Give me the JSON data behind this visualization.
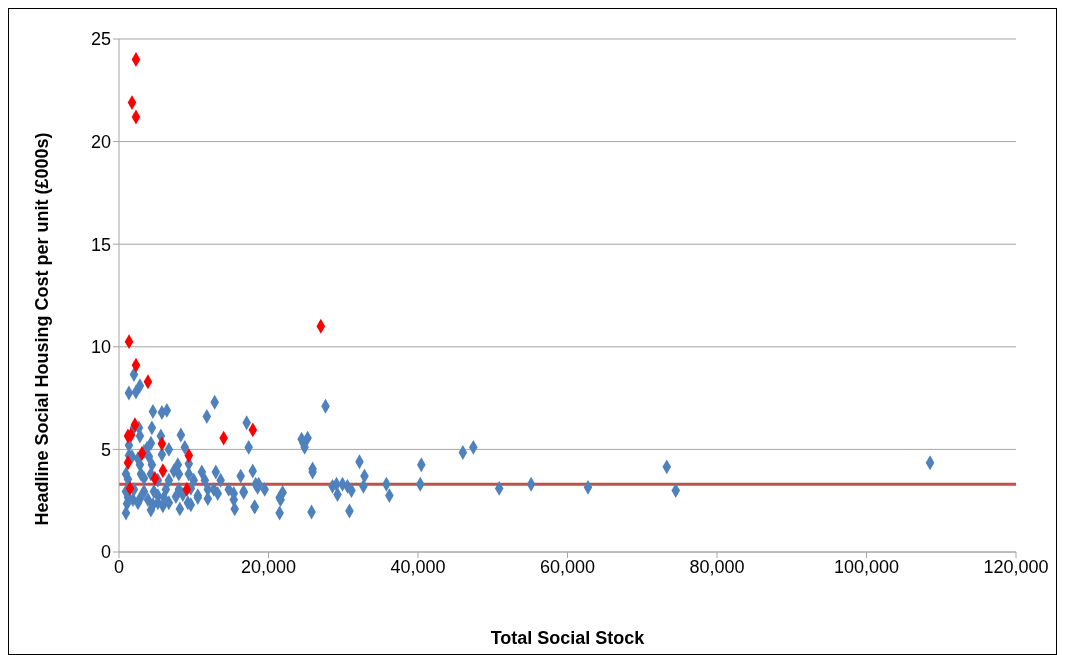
{
  "chart_data": {
    "type": "scatter",
    "xlabel": "Total Social Stock",
    "ylabel": "Headline Social Housing Cost per unit (£000s)",
    "xlim": [
      0,
      120000
    ],
    "xticks": [
      0,
      {
        "value": 20000,
        "label": "20,000"
      },
      {
        "value": 40000,
        "label": "40,000"
      },
      {
        "value": 60000,
        "label": "60,000"
      },
      {
        "value": 80000,
        "label": "80,000"
      },
      {
        "value": 100000,
        "label": "100,000"
      },
      {
        "value": 120000,
        "label": "120,000"
      }
    ],
    "ylim": [
      0,
      25
    ],
    "yticks": [
      0,
      5,
      10,
      15,
      20,
      25
    ],
    "grid": "y",
    "legend": false,
    "marker": "diamond",
    "ref_lines": [
      {
        "axis": "y",
        "value": 3.3,
        "color": "#c0504d"
      }
    ],
    "series": [
      {
        "color": "#4f81bd",
        "x": [
          2000,
          2800,
          1330,
          2270,
          4540,
          5740,
          6400,
          11750,
          12800,
          17080,
          17350,
          2000,
          2670,
          2800,
          4400,
          5600,
          8280,
          8800,
          1330,
          4270,
          6670,
          3740,
          3340,
          1330,
          1740,
          2540,
          4000,
          5740,
          2800,
          4400,
          7870,
          9340,
          930,
          2940,
          4270,
          7340,
          8010,
          9340,
          11080,
          12950,
          1200,
          3340,
          5200,
          6670,
          10000,
          11480,
          13600,
          16280,
          17890,
          930,
          2000,
          3340,
          4670,
          6270,
          8010,
          9610,
          11880,
          12680,
          14680,
          16680,
          18550,
          1200,
          1870,
          2800,
          3870,
          5200,
          6000,
          7610,
          8540,
          10540,
          11880,
          13210,
          15350,
          15350,
          16680,
          1070,
          2540,
          4540,
          5200,
          5870,
          6670,
          8140,
          9210,
          9610,
          10540,
          930,
          4270,
          15480,
          18150,
          27630,
          24430,
          25230,
          24690,
          24830,
          25900,
          25900,
          32170,
          32840,
          18290,
          18690,
          19490,
          21890,
          21490,
          21620,
          18150,
          21490,
          25760,
          28560,
          29100,
          29230,
          29900,
          30570,
          31100,
          30830,
          32700,
          35770,
          36170,
          40440,
          40300,
          46000,
          47400,
          50860,
          55130,
          62740,
          73280,
          74480,
          108500
        ],
        "values": [
          8.65,
          8.1,
          7.75,
          7.8,
          6.85,
          6.8,
          6.9,
          6.6,
          7.3,
          6.3,
          5.1,
          6.05,
          6.05,
          5.65,
          6.05,
          5.65,
          5.7,
          5.1,
          5.2,
          5.3,
          5.0,
          5.05,
          4.9,
          4.7,
          4.65,
          4.55,
          4.65,
          4.75,
          4.25,
          4.25,
          4.25,
          4.3,
          3.8,
          3.8,
          3.8,
          3.95,
          3.8,
          3.8,
          3.9,
          3.9,
          3.55,
          3.6,
          3.5,
          3.5,
          3.5,
          3.5,
          3.5,
          3.7,
          3.95,
          2.95,
          3.05,
          2.95,
          2.95,
          3.05,
          3.05,
          3.1,
          3.05,
          3.05,
          3.05,
          2.95,
          3.15,
          2.65,
          2.55,
          2.6,
          2.55,
          2.75,
          2.65,
          2.7,
          2.8,
          2.75,
          2.6,
          2.85,
          2.85,
          2.55,
          2.9,
          2.35,
          2.4,
          2.3,
          2.4,
          2.25,
          2.4,
          2.1,
          2.4,
          2.3,
          2.65,
          1.9,
          2.05,
          2.1,
          2.2,
          7.1,
          5.5,
          5.55,
          5.3,
          5.1,
          4.05,
          3.9,
          4.4,
          3.7,
          3.3,
          3.3,
          3.05,
          2.9,
          2.65,
          2.55,
          2.2,
          1.9,
          1.95,
          3.2,
          3.3,
          2.8,
          3.3,
          3.2,
          3.0,
          2.0,
          3.2,
          3.3,
          2.75,
          4.25,
          3.3,
          4.85,
          5.1,
          3.1,
          3.3,
          3.15,
          4.15,
          3.0,
          4.35
        ]
      },
      {
        "color": "#ff0000",
        "x": [
          2270,
          1740,
          2270,
          1340,
          2270,
          3870,
          27000,
          2130,
          1200,
          1600,
          14000,
          17900,
          5740,
          3070,
          1200,
          9340,
          5870,
          4800,
          1470,
          9080
        ],
        "values": [
          24.0,
          21.9,
          21.2,
          10.25,
          9.1,
          8.3,
          11.0,
          6.2,
          5.65,
          5.7,
          5.55,
          5.95,
          5.27,
          4.8,
          4.35,
          4.7,
          3.96,
          3.58,
          3.1,
          3.05
        ]
      }
    ]
  }
}
